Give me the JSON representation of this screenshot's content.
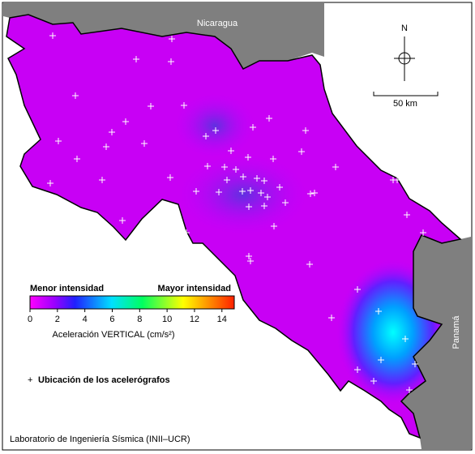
{
  "map": {
    "labels": {
      "north_country": "Nicaragua",
      "south_country": "Panamá"
    },
    "north_arrow": "N",
    "scale_bar": "50 km",
    "colorbar": {
      "low_label": "Menor intensidad",
      "high_label": "Mayor intensidad",
      "range": [
        0,
        14.9
      ],
      "ticks": [
        0,
        2,
        4,
        6,
        8,
        10,
        12,
        14
      ],
      "label": "Aceleración VERTICAL (cm/s²)"
    },
    "stations_legend": "Ubicación de los acelerógrafos",
    "credit": "Laboratorio de Ingeniería Sísmica (INII–UCR)"
  }
}
